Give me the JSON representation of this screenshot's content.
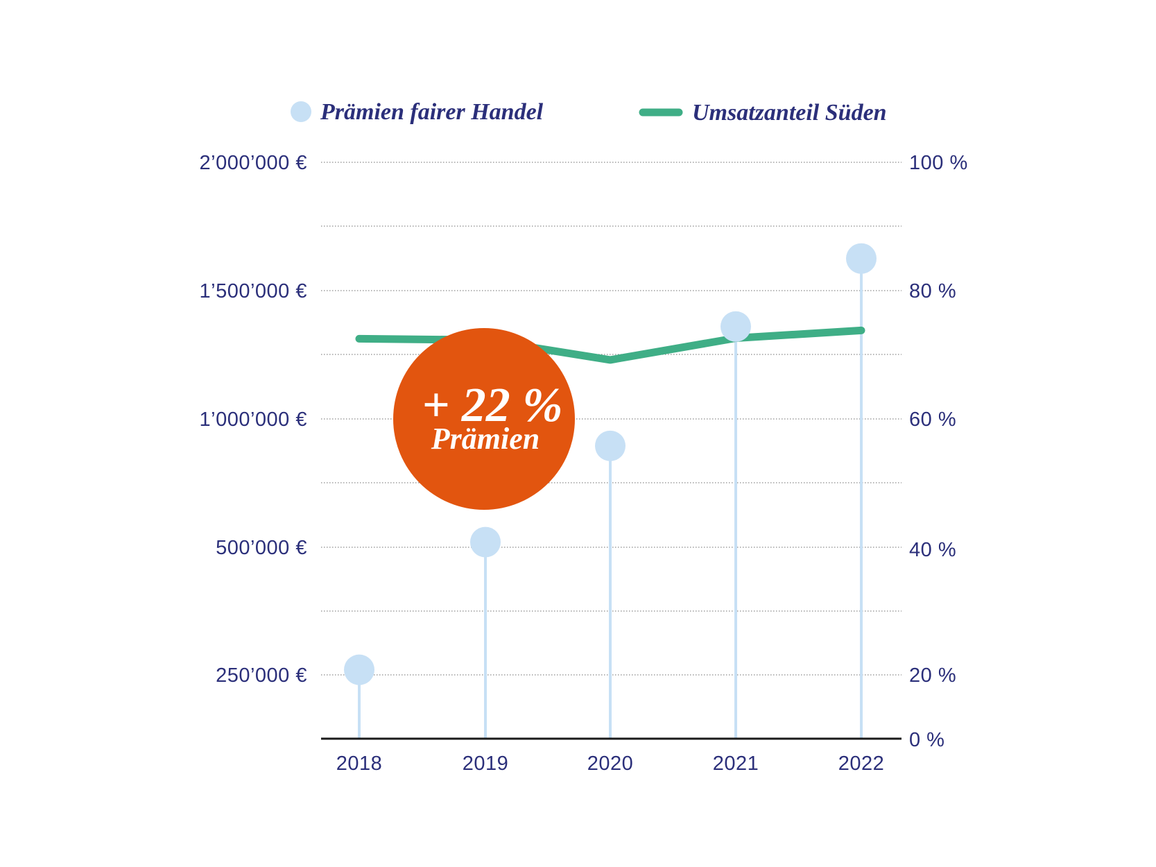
{
  "chart_data": {
    "type": "line",
    "categories": [
      "2018",
      "2019",
      "2020",
      "2021",
      "2022"
    ],
    "legend": {
      "position": "top",
      "entries": [
        "Prämien fairer Handel",
        "Umsatzanteil Süden"
      ]
    },
    "y_left": {
      "tick_values": [
        2000000,
        1500000,
        1000000,
        500000,
        250000
      ],
      "tick_labels": [
        "2’000’000 €",
        "1’500’000 €",
        "1’000’000 €",
        "500’000 €",
        "250’000 €"
      ]
    },
    "y_right": {
      "tick_values": [
        100,
        80,
        60,
        40,
        20,
        0
      ],
      "tick_labels": [
        "100 %",
        "80 %",
        "60 %",
        "40 %",
        "20 %",
        "0 %"
      ],
      "ylim": [
        0,
        100
      ]
    },
    "grid": true,
    "series": [
      {
        "name": "Prämien fairer Handel",
        "type": "lollipop",
        "axis": "left",
        "values": [
          260000,
          520000,
          895000,
          1360000,
          1625000
        ],
        "color": "#c7e0f5"
      },
      {
        "name": "Umsatzanteil Süden",
        "type": "line",
        "axis": "right",
        "values": [
          72.5,
          72.3,
          69.2,
          72.6,
          73.8
        ],
        "color": "#3fae86"
      }
    ],
    "annotation": {
      "line1": "+ 22 %",
      "line2": "Prämien",
      "color": "#e2550f"
    },
    "colors": {
      "text": "#2b2f7a",
      "grid": "#8a8a8a",
      "axis": "#1a1a1a"
    }
  }
}
